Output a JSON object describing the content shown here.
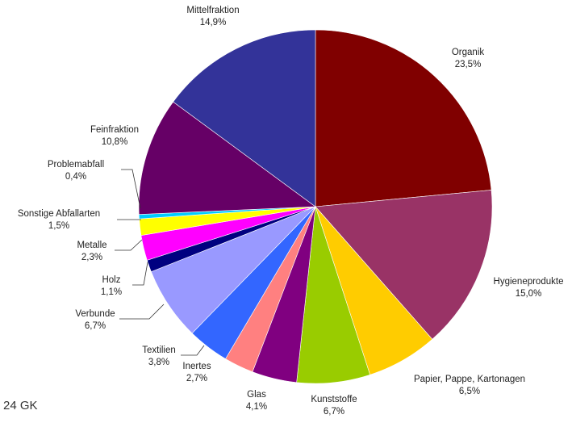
{
  "corner_label": "24 GK",
  "chart_data": {
    "type": "pie",
    "title": "",
    "slices": [
      {
        "name": "Organik",
        "value": 23.5,
        "display": "23,5%",
        "color": "#800000"
      },
      {
        "name": "Hygieneprodukte",
        "value": 15.0,
        "display": "15,0%",
        "color": "#993366"
      },
      {
        "name": "Papier, Pappe, Kartonagen",
        "value": 6.5,
        "display": "6,5%",
        "color": "#FFCC00"
      },
      {
        "name": "Kunststoffe",
        "value": 6.7,
        "display": "6,7%",
        "color": "#99CC00"
      },
      {
        "name": "Glas",
        "value": 4.1,
        "display": "4,1%",
        "color": "#800080"
      },
      {
        "name": "Inertes",
        "value": 2.7,
        "display": "2,7%",
        "color": "#FF8080"
      },
      {
        "name": "Textilien",
        "value": 3.8,
        "display": "3,8%",
        "color": "#3366FF"
      },
      {
        "name": "Verbunde",
        "value": 6.7,
        "display": "6,7%",
        "color": "#9999FF"
      },
      {
        "name": "Holz",
        "value": 1.1,
        "display": "1,1%",
        "color": "#000080"
      },
      {
        "name": "Metalle",
        "value": 2.3,
        "display": "2,3%",
        "color": "#FF00FF"
      },
      {
        "name": "Sonstige Abfallarten",
        "value": 1.5,
        "display": "1,5%",
        "color": "#FFFF00"
      },
      {
        "name": "Problemabfall",
        "value": 0.4,
        "display": "0,4%",
        "color": "#00CCFF"
      },
      {
        "name": "Feinfraktion",
        "value": 10.8,
        "display": "10,8%",
        "color": "#660066"
      },
      {
        "name": "Mittelfraktion",
        "value": 14.9,
        "display": "14,9%",
        "color": "#333399"
      }
    ]
  }
}
